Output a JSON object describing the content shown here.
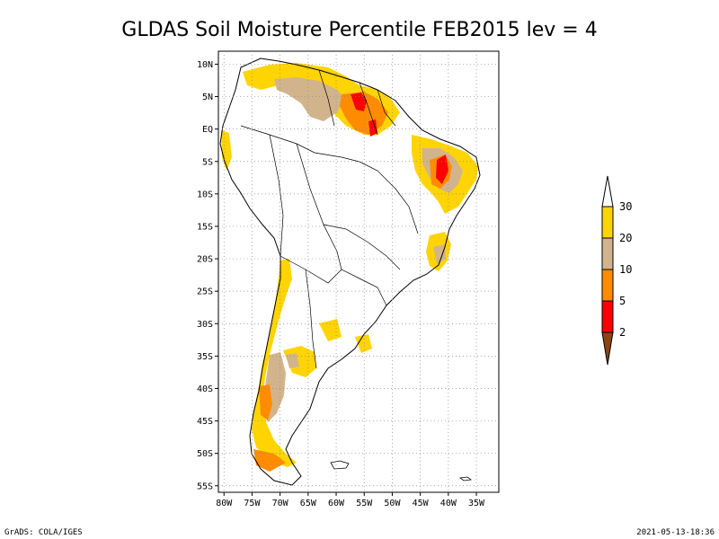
{
  "title": "GLDAS Soil Moisture Percentile FEB2015 lev = 4",
  "footer_left": "GrADS: COLA/IGES",
  "footer_right": "2021-05-13-18:36",
  "map": {
    "lon_range": [
      -81,
      -31
    ],
    "lat_range": [
      -56,
      12
    ],
    "lat_ticks": [
      "10N",
      "5N",
      "EQ",
      "5S",
      "10S",
      "15S",
      "20S",
      "25S",
      "30S",
      "35S",
      "40S",
      "45S",
      "50S",
      "55S"
    ],
    "lat_tick_values": [
      10,
      5,
      0,
      -5,
      -10,
      -15,
      -20,
      -25,
      -30,
      -35,
      -40,
      -45,
      -50,
      -55
    ],
    "lon_ticks": [
      "80W",
      "75W",
      "70W",
      "65W",
      "60W",
      "55W",
      "50W",
      "45W",
      "40W",
      "35W"
    ],
    "lon_tick_values": [
      -80,
      -75,
      -70,
      -65,
      -60,
      -55,
      -50,
      -45,
      -40,
      -35
    ],
    "grid": "dotted"
  },
  "colorbar": {
    "labels": [
      "30",
      "20",
      "10",
      "5",
      "2"
    ],
    "colors": {
      "above_30": "#ffffff",
      "20_30": "#ffd400",
      "10_20": "#d2b48c",
      "5_10": "#ff8c00",
      "2_5": "#ff0000",
      "below_2": "#8b4513"
    }
  },
  "field_colors": {
    "yellow": "#ffd400",
    "tan": "#d2b48c",
    "orange": "#ff8c00",
    "red": "#ff0000"
  }
}
